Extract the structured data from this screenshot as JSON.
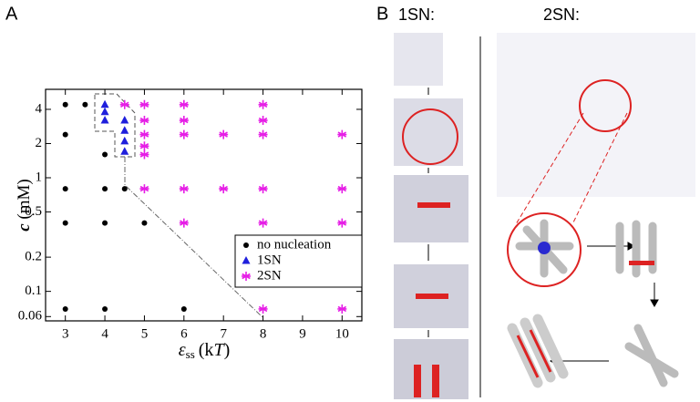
{
  "chart_data": {
    "type": "scatter",
    "panel_label": "A",
    "x_label": {
      "symbol": "ε",
      "subscript": "ss",
      "unit_open": "(k",
      "unit_var": "T",
      "unit_close": ")"
    },
    "y_label": {
      "symbol": "c",
      "unit": "(mM)"
    },
    "xlim": [
      2.5,
      10.5
    ],
    "xticks": [
      3,
      4,
      5,
      6,
      7,
      8,
      9,
      10
    ],
    "ylim": [
      0.055,
      6
    ],
    "yticks": [
      0.06,
      0.1,
      0.2,
      0.5,
      1,
      2,
      4
    ],
    "log_y": true,
    "legend": "right",
    "series": [
      {
        "name": "no nucleation",
        "color": "#000000",
        "marker": "circle",
        "x": [
          3,
          3.5,
          3,
          4,
          3,
          4,
          4.5,
          3,
          4,
          5,
          3,
          4,
          6
        ],
        "values": [
          4.4,
          4.4,
          2.4,
          1.6,
          0.8,
          0.8,
          0.8,
          0.4,
          0.4,
          0.4,
          0.07,
          0.07,
          0.07
        ]
      },
      {
        "name": "1SN",
        "color": "#1f1fdc",
        "marker": "triangle",
        "x": [
          4,
          4,
          4,
          4.5,
          4.5,
          4.5,
          4.5
        ],
        "values": [
          4.4,
          3.8,
          3.2,
          3.2,
          2.6,
          2.1,
          1.7
        ]
      },
      {
        "name": "2SN",
        "color": "#e61ee6",
        "marker": "star",
        "x": [
          4.5,
          5,
          6,
          8,
          5,
          6,
          8,
          5,
          6,
          7,
          8,
          10,
          5,
          5,
          5,
          6,
          7,
          8,
          10,
          6,
          8,
          10,
          8,
          10
        ],
        "values": [
          4.4,
          4.4,
          4.4,
          4.4,
          3.2,
          3.2,
          3.2,
          2.4,
          2.4,
          2.4,
          2.4,
          2.4,
          1.9,
          1.6,
          0.8,
          0.8,
          0.8,
          0.8,
          0.8,
          0.4,
          0.4,
          0.4,
          0.07,
          0.07
        ]
      }
    ]
  },
  "panel_b": {
    "label": "B",
    "left_title": "1SN:",
    "right_title": "2SN:"
  }
}
